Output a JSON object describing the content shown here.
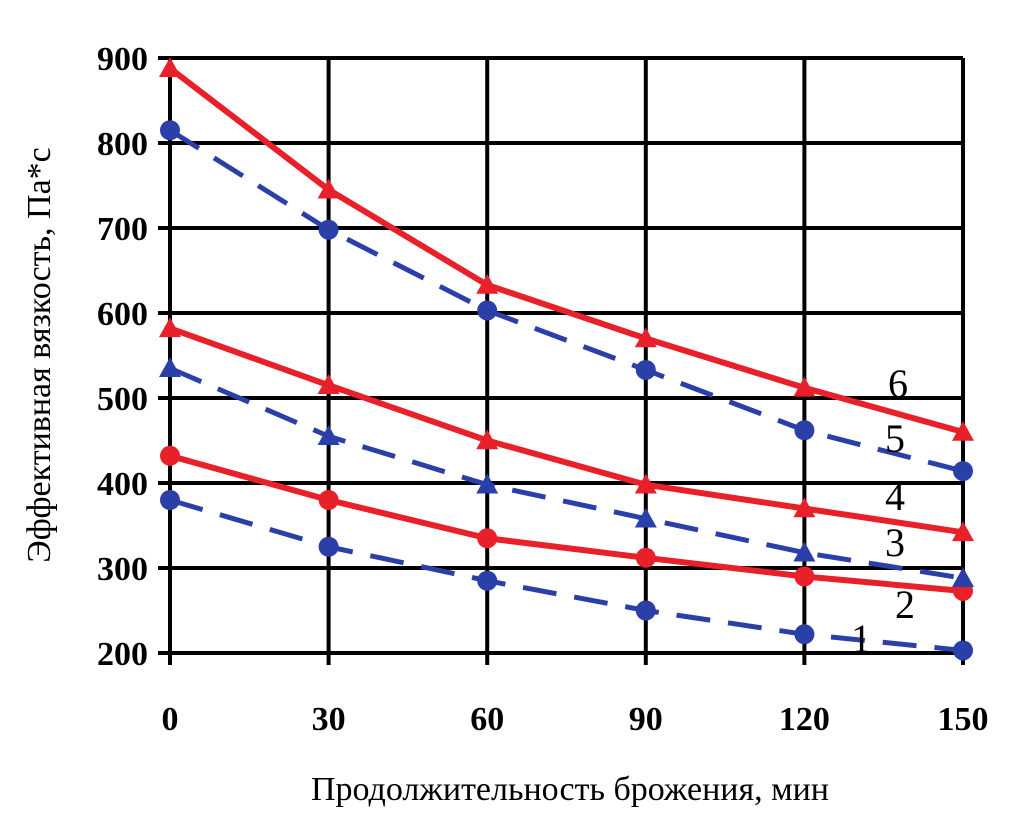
{
  "chart_data": {
    "type": "line",
    "title": "",
    "xlabel": "Продолжительность брожения, мин",
    "ylabel": "Эффективная вязкость, Па*с",
    "x": [
      0,
      30,
      60,
      90,
      120,
      150
    ],
    "x_ticks": [
      "0",
      "30",
      "60",
      "90",
      "120",
      "150"
    ],
    "y_ticks": [
      "200",
      "300",
      "400",
      "500",
      "600",
      "700",
      "800",
      "900"
    ],
    "xlim": [
      0,
      150
    ],
    "ylim": [
      200,
      900
    ],
    "grid": true,
    "series": [
      {
        "name": "1",
        "style": "dashed",
        "marker": "circle",
        "color": "#2b3fa8",
        "values": [
          380,
          325,
          285,
          250,
          222,
          203
        ]
      },
      {
        "name": "2",
        "style": "solid",
        "marker": "circle",
        "color": "#e8202a",
        "values": [
          432,
          380,
          335,
          312,
          290,
          273
        ]
      },
      {
        "name": "3",
        "style": "dashed",
        "marker": "triangle",
        "color": "#2b3fa8",
        "values": [
          535,
          455,
          398,
          358,
          318,
          288
        ]
      },
      {
        "name": "4",
        "style": "solid",
        "marker": "triangle",
        "color": "#e8202a",
        "values": [
          582,
          515,
          450,
          398,
          370,
          342
        ]
      },
      {
        "name": "5",
        "style": "dashed",
        "marker": "circle",
        "color": "#2b3fa8",
        "values": [
          815,
          698,
          603,
          533,
          462,
          414
        ]
      },
      {
        "name": "6",
        "style": "solid",
        "marker": "triangle",
        "color": "#e8202a",
        "values": [
          888,
          745,
          633,
          570,
          512,
          460
        ]
      }
    ]
  }
}
